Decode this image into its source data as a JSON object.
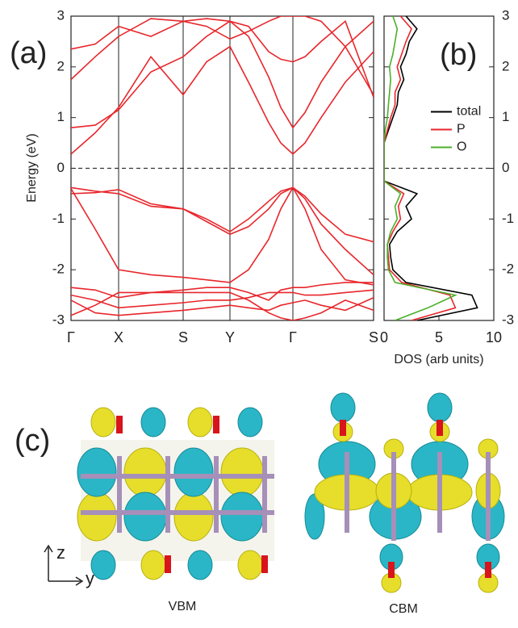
{
  "chart_data": [
    {
      "type": "line",
      "label": "(a)",
      "ylabel": "Energy (eV)",
      "color": "#e8262b",
      "xlim": [
        0,
        3.75
      ],
      "ylim": [
        -3,
        3
      ],
      "xticks": [
        {
          "value": 0,
          "label": "Γ"
        },
        {
          "value": 0.59,
          "label": "X"
        },
        {
          "value": 1.39,
          "label": "S"
        },
        {
          "value": 1.97,
          "label": "Y"
        },
        {
          "value": 2.75,
          "label": "Γ"
        },
        {
          "value": 3.75,
          "label": "S"
        }
      ],
      "yticks": [
        -3,
        -2,
        -1,
        0,
        1,
        2,
        3
      ],
      "grid": true,
      "reference_line": 0,
      "x": [
        0,
        0.3,
        0.59,
        0.99,
        1.39,
        1.68,
        1.97,
        2.2,
        2.45,
        2.6,
        2.75,
        2.9,
        3.1,
        3.4,
        3.75
      ],
      "series": [
        {
          "values": [
            0.28,
            0.7,
            1.2,
            2.2,
            1.45,
            2.1,
            2.4,
            1.7,
            0.9,
            0.5,
            0.28,
            0.5,
            1.0,
            1.7,
            2.3
          ]
        },
        {
          "values": [
            0.8,
            0.85,
            1.15,
            1.9,
            2.2,
            2.6,
            2.9,
            2.6,
            1.8,
            1.2,
            0.8,
            1.1,
            1.7,
            2.4,
            2.9
          ]
        },
        {
          "values": [
            1.75,
            2.2,
            2.6,
            2.95,
            2.9,
            2.95,
            2.9,
            2.8,
            2.3,
            2.15,
            2.1,
            2.2,
            2.5,
            2.9,
            1.4
          ]
        },
        {
          "values": [
            2.35,
            2.45,
            2.8,
            2.6,
            2.9,
            2.8,
            2.55,
            2.7,
            2.9,
            3,
            3,
            3,
            2.9,
            2.4,
            1.45
          ]
        },
        {
          "values": [
            -0.38,
            -0.45,
            -0.5,
            -0.75,
            -0.8,
            -1.0,
            -1.25,
            -1.0,
            -0.65,
            -0.45,
            -0.38,
            -0.55,
            -0.9,
            -1.3,
            -1.45
          ]
        },
        {
          "values": [
            -0.5,
            -0.48,
            -0.42,
            -0.7,
            -0.8,
            -1.05,
            -1.3,
            -1.15,
            -0.8,
            -0.5,
            -0.38,
            -0.6,
            -1.1,
            -1.6,
            -2.1
          ]
        },
        {
          "values": [
            -0.4,
            -1.2,
            -2.0,
            -2.1,
            -2.15,
            -2.2,
            -2.25,
            -2.0,
            -1.4,
            -0.8,
            -0.38,
            -0.8,
            -1.6,
            -2.2,
            -2.3
          ]
        },
        {
          "values": [
            -2.35,
            -2.4,
            -2.55,
            -2.45,
            -2.4,
            -2.35,
            -2.35,
            -2.45,
            -2.6,
            -2.4,
            -2.35,
            -2.35,
            -2.3,
            -2.25,
            -2.25
          ]
        },
        {
          "values": [
            -2.5,
            -2.6,
            -2.75,
            -2.7,
            -2.65,
            -2.6,
            -2.6,
            -2.55,
            -2.45,
            -2.45,
            -2.45,
            -2.5,
            -2.5,
            -2.45,
            -2.4
          ]
        },
        {
          "values": [
            -2.6,
            -2.85,
            -2.9,
            -2.85,
            -2.8,
            -2.75,
            -2.7,
            -2.75,
            -2.8,
            -2.7,
            -2.65,
            -2.6,
            -2.7,
            -2.8,
            -2.55
          ]
        },
        {
          "values": [
            -2.9,
            -2.7,
            -2.45,
            -2.45,
            -2.45,
            -2.45,
            -2.45,
            -2.6,
            -2.85,
            -2.95,
            -3,
            -2.95,
            -2.85,
            -2.6,
            -2.8
          ]
        }
      ]
    },
    {
      "type": "line",
      "label": "(b)",
      "xlabel": "DOS (arb units)",
      "legend_position": "center right",
      "xlim": [
        0,
        10
      ],
      "ylim": [
        -3,
        3
      ],
      "xticks": [
        0,
        5,
        10
      ],
      "yticks": [
        -3,
        -2,
        -1,
        0,
        1,
        2,
        3
      ],
      "reference_line": 0,
      "y": [
        -3,
        -2.75,
        -2.5,
        -2.25,
        -2,
        -1.75,
        -1.5,
        -1.25,
        -1,
        -0.75,
        -0.5,
        -0.25,
        0,
        0.25,
        0.5,
        0.75,
        1,
        1.25,
        1.5,
        1.75,
        2,
        2.25,
        2.5,
        2.75,
        3
      ],
      "series": [
        {
          "name": "total",
          "color": "#000000",
          "values": [
            3,
            8.5,
            8,
            2,
            0.8,
            0.6,
            0.5,
            1.2,
            2.5,
            2,
            3,
            0,
            0,
            0,
            0,
            0.4,
            0.8,
            1.2,
            1.3,
            1.8,
            1.5,
            2,
            2.3,
            3,
            2
          ]
        },
        {
          "name": "P",
          "color": "#e8262b",
          "values": [
            2.5,
            6.5,
            6,
            1.6,
            0.5,
            0.4,
            0.3,
            0.8,
            1.5,
            1.3,
            1.8,
            0,
            0,
            0,
            0,
            0.3,
            0.6,
            1,
            1,
            1.5,
            1.2,
            1.6,
            2,
            2.5,
            1.5
          ]
        },
        {
          "name": "O",
          "color": "#4caf2a",
          "values": [
            1,
            4,
            6.5,
            1,
            0.4,
            0.3,
            0.3,
            0.6,
            1.2,
            1,
            1.5,
            0,
            0,
            0,
            0,
            0.1,
            0.3,
            0.4,
            0.5,
            0.6,
            0.5,
            0.8,
            1,
            1.2,
            0.8
          ]
        }
      ]
    }
  ],
  "panel_c": {
    "label": "(c)",
    "axis_z": "z",
    "axis_y": "y",
    "left_caption": "VBM",
    "right_caption": "CBM"
  }
}
